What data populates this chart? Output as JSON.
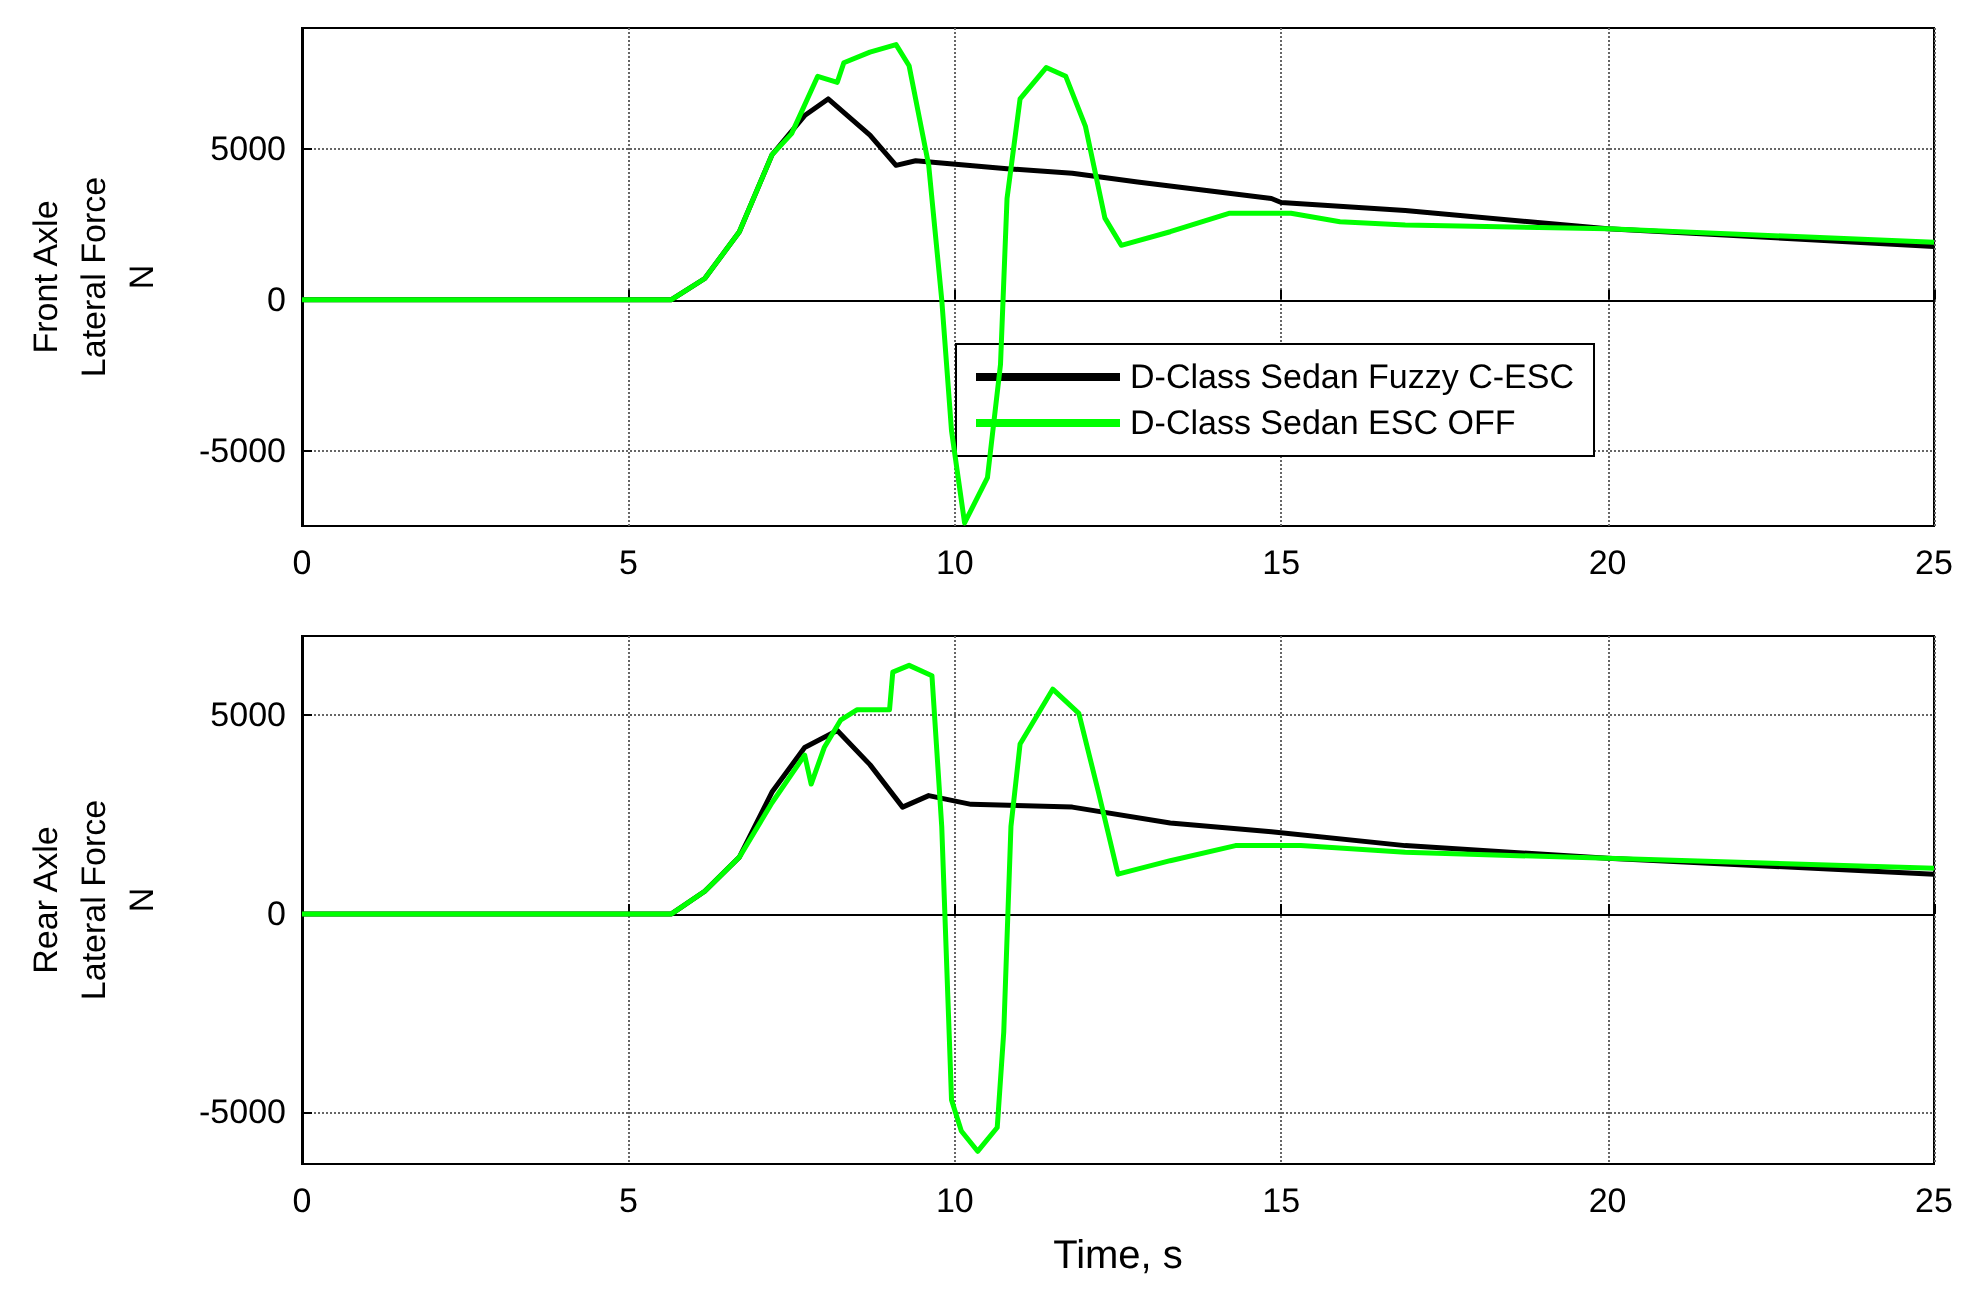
{
  "chart_data": [
    {
      "type": "line",
      "ylabel": "Front Axle\nLateral Force\nN",
      "xlim": [
        0,
        25
      ],
      "xticks": [
        0,
        5,
        10,
        15,
        20,
        25
      ],
      "ylim": [
        -7500,
        9000
      ],
      "yticks": [
        -5000,
        0,
        5000
      ],
      "grid": true,
      "legend": "right",
      "marker": "none",
      "line_style": "solid",
      "series": [
        {
          "name": "D-Class Sedan Fuzzy C-ESC",
          "color": "#000000",
          "x": [
            0,
            5.66,
            6.17,
            6.7,
            7.2,
            7.7,
            8.06,
            8.7,
            9.1,
            9.4,
            10.8,
            11.8,
            12.8,
            14.85,
            15,
            16.9,
            20,
            25
          ],
          "values": [
            0,
            0,
            700,
            2250,
            4800,
            6100,
            6650,
            5450,
            4450,
            4600,
            4340,
            4190,
            3900,
            3350,
            3220,
            2950,
            2350,
            1760
          ]
        },
        {
          "name": "D-Class Sedan ESC OFF",
          "color": "#00ff00",
          "x": [
            0,
            5.66,
            6.17,
            6.7,
            7.2,
            7.5,
            7.9,
            8.2,
            8.3,
            8.7,
            9.1,
            9.3,
            9.6,
            9.8,
            9.95,
            10.15,
            10.5,
            10.7,
            10.8,
            11.0,
            11.4,
            11.7,
            12.0,
            12.3,
            12.55,
            13.3,
            14.2,
            15.15,
            15.9,
            16.9,
            20,
            25
          ],
          "values": [
            0,
            0,
            700,
            2250,
            4800,
            5500,
            7400,
            7200,
            7850,
            8200,
            8450,
            7750,
            4450,
            0,
            -4350,
            -7400,
            -5900,
            -2150,
            3350,
            6650,
            7690,
            7400,
            5750,
            2700,
            1800,
            2250,
            2860,
            2860,
            2580,
            2470,
            2350,
            1900
          ]
        }
      ]
    },
    {
      "type": "line",
      "ylabel": "Rear Axle\nLateral Force\nN",
      "xlabel": "Time, s",
      "xlim": [
        0,
        25
      ],
      "xticks": [
        0,
        5,
        10,
        15,
        20,
        25
      ],
      "ylim": [
        -6300,
        7000
      ],
      "yticks": [
        -5000,
        0,
        5000
      ],
      "grid": true,
      "legend": false,
      "marker": "none",
      "line_style": "solid",
      "series": [
        {
          "color": "#000000",
          "x": [
            0,
            5.66,
            6.17,
            6.7,
            7.2,
            7.7,
            8.2,
            8.7,
            9.2,
            9.6,
            10.25,
            11.8,
            13.3,
            14.85,
            16.9,
            20,
            25
          ],
          "values": [
            0,
            0,
            570,
            1430,
            3070,
            4190,
            4620,
            3760,
            2690,
            2980,
            2760,
            2690,
            2290,
            2070,
            1720,
            1400,
            1000
          ]
        },
        {
          "color": "#00ff00",
          "x": [
            0,
            5.66,
            6.17,
            6.7,
            7.2,
            7.7,
            7.8,
            8.0,
            8.25,
            8.5,
            9.0,
            9.05,
            9.3,
            9.65,
            9.8,
            9.95,
            10.1,
            10.35,
            10.65,
            10.75,
            10.86,
            11.0,
            11.5,
            11.9,
            12.2,
            12.5,
            13.3,
            14.3,
            15.3,
            16.9,
            20,
            25
          ],
          "values": [
            0,
            0,
            570,
            1430,
            2800,
            4000,
            3270,
            4190,
            4880,
            5140,
            5140,
            6090,
            6260,
            6000,
            2200,
            -4690,
            -5470,
            -5980,
            -5380,
            -2970,
            2200,
            4280,
            5660,
            5050,
            3070,
            1000,
            1340,
            1720,
            1720,
            1550,
            1400,
            1150
          ]
        }
      ]
    }
  ]
}
